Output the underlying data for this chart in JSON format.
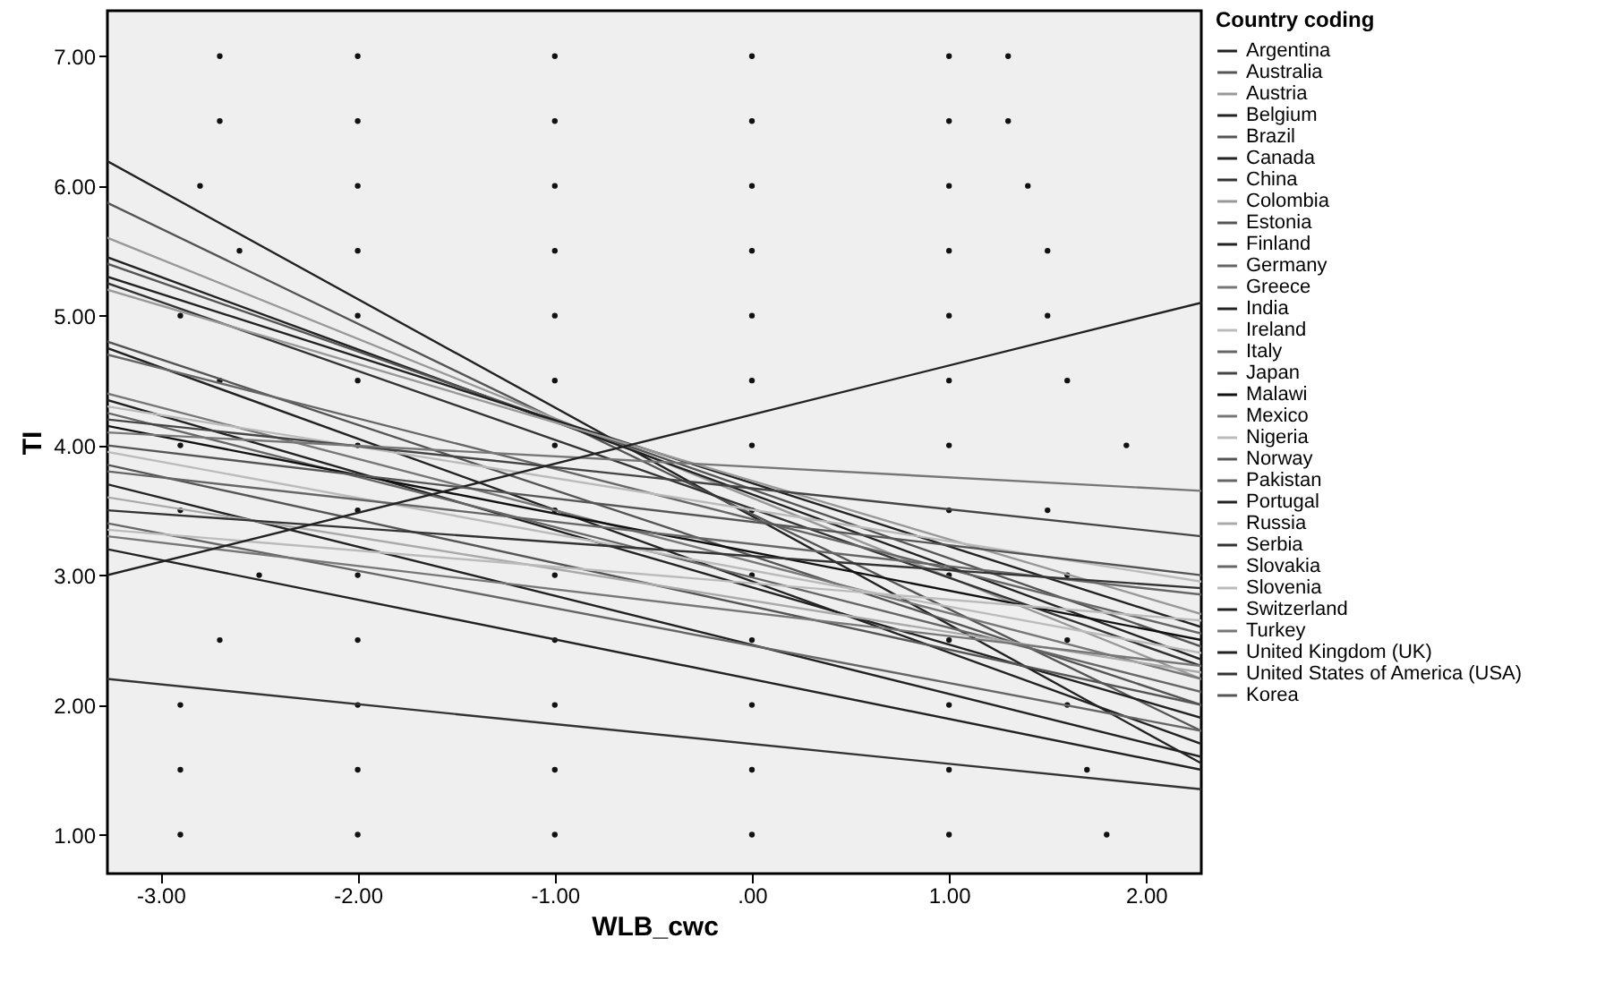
{
  "chart_data": {
    "type": "line",
    "xlabel": "WLB_cwc",
    "ylabel": "TI",
    "legend_title": "Country coding",
    "legend": "right",
    "grid": false,
    "xlim": [
      -3.27,
      2.28
    ],
    "ylim": [
      0.7,
      7.35
    ],
    "xticks": [
      {
        "value": -3,
        "label": "-3.00"
      },
      {
        "value": -2,
        "label": "-2.00"
      },
      {
        "value": -1,
        "label": "-1.00"
      },
      {
        "value": 0,
        "label": ".00"
      },
      {
        "value": 1,
        "label": "1.00"
      },
      {
        "value": 2,
        "label": "2.00"
      }
    ],
    "yticks": [
      {
        "value": 1,
        "label": "1.00"
      },
      {
        "value": 2,
        "label": "2.00"
      },
      {
        "value": 3,
        "label": "3.00"
      },
      {
        "value": 4,
        "label": "4.00"
      },
      {
        "value": 5,
        "label": "5.00"
      },
      {
        "value": 6,
        "label": "6.00"
      },
      {
        "value": 7,
        "label": "7.00"
      }
    ],
    "series": [
      {
        "type": "scatter",
        "color": "#111111",
        "x": [
          -2.7,
          -2,
          -1,
          0,
          1,
          1.3,
          -2.7,
          -2,
          -1,
          0,
          1,
          1.3,
          -2.8,
          -2,
          -1,
          0,
          1,
          1.4,
          -2.6,
          -2,
          -1,
          0,
          1,
          1.5,
          -2.9,
          -2,
          -1,
          0,
          1,
          1.5,
          -2.7,
          -2,
          -1,
          0,
          1,
          1.6,
          -2.9,
          -2,
          -1,
          0,
          1,
          1.9,
          -2.9,
          -2,
          -1,
          0,
          1,
          1.5,
          -2.5,
          -2,
          -1,
          0,
          1,
          1.6,
          -2.7,
          -2,
          -1,
          0,
          1,
          1.6,
          -2.9,
          -2,
          -1,
          0,
          1,
          1.6,
          -2.9,
          -2,
          -1,
          0,
          1,
          1.7,
          -2.9,
          -2,
          -1,
          0,
          1,
          1.8
        ],
        "values": [
          7,
          7,
          7,
          7,
          7,
          7,
          6.5,
          6.5,
          6.5,
          6.5,
          6.5,
          6.5,
          6,
          6,
          6,
          6,
          6,
          6,
          5.5,
          5.5,
          5.5,
          5.5,
          5.5,
          5.5,
          5,
          5,
          5,
          5,
          5,
          5,
          4.5,
          4.5,
          4.5,
          4.5,
          4.5,
          4.5,
          4,
          4,
          4,
          4,
          4,
          4,
          3.5,
          3.5,
          3.5,
          3.5,
          3.5,
          3.5,
          3,
          3,
          3,
          3,
          3,
          3,
          2.5,
          2.5,
          2.5,
          2.5,
          2.5,
          2.5,
          2,
          2,
          2,
          2,
          2,
          2,
          1.5,
          1.5,
          1.5,
          1.5,
          1.5,
          1.5,
          1,
          1,
          1,
          1,
          1,
          1
        ]
      },
      {
        "name": "Argentina",
        "color": "#222222",
        "x": [
          -3.27,
          2.28
        ],
        "values": [
          6.19,
          1.55
        ]
      },
      {
        "name": "Australia",
        "color": "#555555",
        "x": [
          -3.27,
          2.28
        ],
        "values": [
          5.87,
          1.8
        ]
      },
      {
        "name": "Austria",
        "color": "#999999",
        "x": [
          -3.27,
          2.28
        ],
        "values": [
          5.6,
          2.2
        ]
      },
      {
        "name": "Belgium",
        "color": "#222222",
        "x": [
          -3.27,
          2.28
        ],
        "values": [
          5.45,
          2.35
        ]
      },
      {
        "name": "Brazil",
        "color": "#555555",
        "x": [
          -3.27,
          2.28
        ],
        "values": [
          5.4,
          2.45
        ]
      },
      {
        "name": "Canada",
        "color": "#222222",
        "x": [
          -3.27,
          2.28
        ],
        "values": [
          5.3,
          2.6
        ]
      },
      {
        "name": "China",
        "color": "#333333",
        "x": [
          -3.27,
          2.28
        ],
        "values": [
          5.25,
          2.3
        ]
      },
      {
        "name": "Colombia",
        "color": "#999999",
        "x": [
          -3.27,
          2.28
        ],
        "values": [
          5.2,
          2.7
        ]
      },
      {
        "name": "Estonia",
        "color": "#555555",
        "x": [
          -3.27,
          2.28
        ],
        "values": [
          4.8,
          2.0
        ]
      },
      {
        "name": "Finland",
        "color": "#222222",
        "x": [
          -3.27,
          2.28
        ],
        "values": [
          4.75,
          1.7
        ]
      },
      {
        "name": "Germany",
        "color": "#666666",
        "x": [
          -3.27,
          2.28
        ],
        "values": [
          4.7,
          2.55
        ]
      },
      {
        "name": "Greece",
        "color": "#777777",
        "x": [
          -3.27,
          2.28
        ],
        "values": [
          4.4,
          2.2
        ]
      },
      {
        "name": "India",
        "color": "#222222",
        "x": [
          -3.27,
          2.28
        ],
        "values": [
          4.35,
          1.9
        ]
      },
      {
        "name": "Ireland",
        "color": "#bbbbbb",
        "x": [
          -3.27,
          2.28
        ],
        "values": [
          4.3,
          2.95
        ]
      },
      {
        "name": "Italy",
        "color": "#666666",
        "x": [
          -3.27,
          2.28
        ],
        "values": [
          4.25,
          2.1
        ]
      },
      {
        "name": "Japan",
        "color": "#444444",
        "x": [
          -3.27,
          2.28
        ],
        "values": [
          4.2,
          3.3
        ]
      },
      {
        "name": "Malawi",
        "color": "#111111",
        "x": [
          -3.27,
          2.28
        ],
        "values": [
          4.15,
          2.5
        ]
      },
      {
        "name": "Mexico",
        "color": "#777777",
        "x": [
          -3.27,
          2.28
        ],
        "values": [
          4.1,
          3.65
        ]
      },
      {
        "name": "Nigeria",
        "color": "#bbbbbb",
        "x": [
          -3.27,
          2.28
        ],
        "values": [
          3.95,
          2.4
        ]
      },
      {
        "name": "Norway",
        "color": "#555555",
        "x": [
          -3.27,
          2.28
        ],
        "values": [
          3.85,
          2.0
        ]
      },
      {
        "name": "Pakistan",
        "color": "#666666",
        "x": [
          -3.27,
          2.28
        ],
        "values": [
          3.8,
          2.85
        ]
      },
      {
        "name": "Portugal",
        "color": "#222222",
        "x": [
          -3.27,
          2.28
        ],
        "values": [
          3.7,
          1.6
        ]
      },
      {
        "name": "Russia",
        "color": "#aaaaaa",
        "x": [
          -3.27,
          2.28
        ],
        "values": [
          3.6,
          2.25
        ]
      },
      {
        "name": "Serbia",
        "color": "#333333",
        "x": [
          -3.27,
          2.28
        ],
        "values": [
          3.5,
          2.9
        ]
      },
      {
        "name": "Slovakia",
        "color": "#666666",
        "x": [
          -3.27,
          2.28
        ],
        "values": [
          3.4,
          1.8
        ]
      },
      {
        "name": "Slovenia",
        "color": "#bbbbbb",
        "x": [
          -3.27,
          2.28
        ],
        "values": [
          3.35,
          2.65
        ]
      },
      {
        "name": "Switzerland",
        "color": "#222222",
        "x": [
          -3.27,
          2.28
        ],
        "values": [
          3.2,
          1.5
        ]
      },
      {
        "name": "Turkey",
        "color": "#777777",
        "x": [
          -3.27,
          2.28
        ],
        "values": [
          3.3,
          2.3
        ]
      },
      {
        "name": "United Kingdom (UK)",
        "color": "#222222",
        "x": [
          -3.27,
          2.28
        ],
        "values": [
          3.0,
          5.1
        ]
      },
      {
        "name": "United States of America (USA)",
        "color": "#333333",
        "x": [
          -3.27,
          2.28
        ],
        "values": [
          2.2,
          1.35
        ]
      },
      {
        "name": "Korea",
        "color": "#555555",
        "x": [
          -3.27,
          2.28
        ],
        "values": [
          4.0,
          3.0
        ]
      }
    ]
  }
}
